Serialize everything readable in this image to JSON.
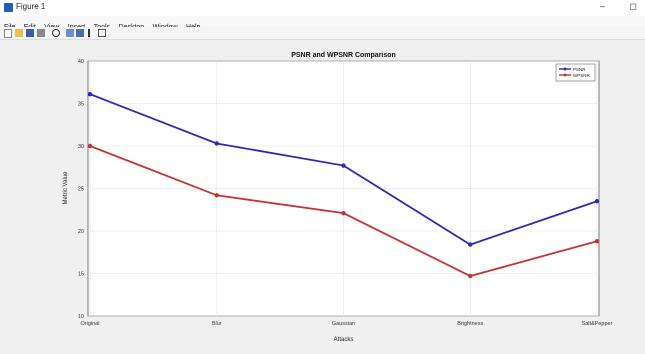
{
  "window": {
    "title": "Figure 1",
    "minimize": "–",
    "restore": "◻"
  },
  "menu": [
    "File",
    "Edit",
    "View",
    "Insert",
    "Tools",
    "Desktop",
    "Window",
    "Help"
  ],
  "toolbar_icons": [
    "new-figure-icon",
    "open-icon",
    "save-icon",
    "print-icon",
    "zoom-icon",
    "pan-icon",
    "rotate-icon",
    "data-cursor-icon",
    "brush-icon"
  ],
  "chart_data": {
    "type": "line",
    "title": "PSNR and WPSNR Comparison",
    "xlabel": "Attacks",
    "ylabel": "Metric Value",
    "categories": [
      "Original",
      "Blur",
      "Gaussian",
      "Brightness",
      "Salt&Pepper"
    ],
    "ylim": [
      10,
      40
    ],
    "yticks": [
      10,
      15,
      20,
      25,
      30,
      35,
      40
    ],
    "grid": true,
    "legend_position": "top-right",
    "series": [
      {
        "name": "PSNR",
        "color": "#2b2bb5",
        "values": [
          36.1,
          30.3,
          27.7,
          18.4,
          23.5
        ]
      },
      {
        "name": "WPSNR",
        "color": "#c83232",
        "values": [
          30.0,
          24.2,
          22.1,
          14.7,
          18.8
        ]
      }
    ]
  }
}
